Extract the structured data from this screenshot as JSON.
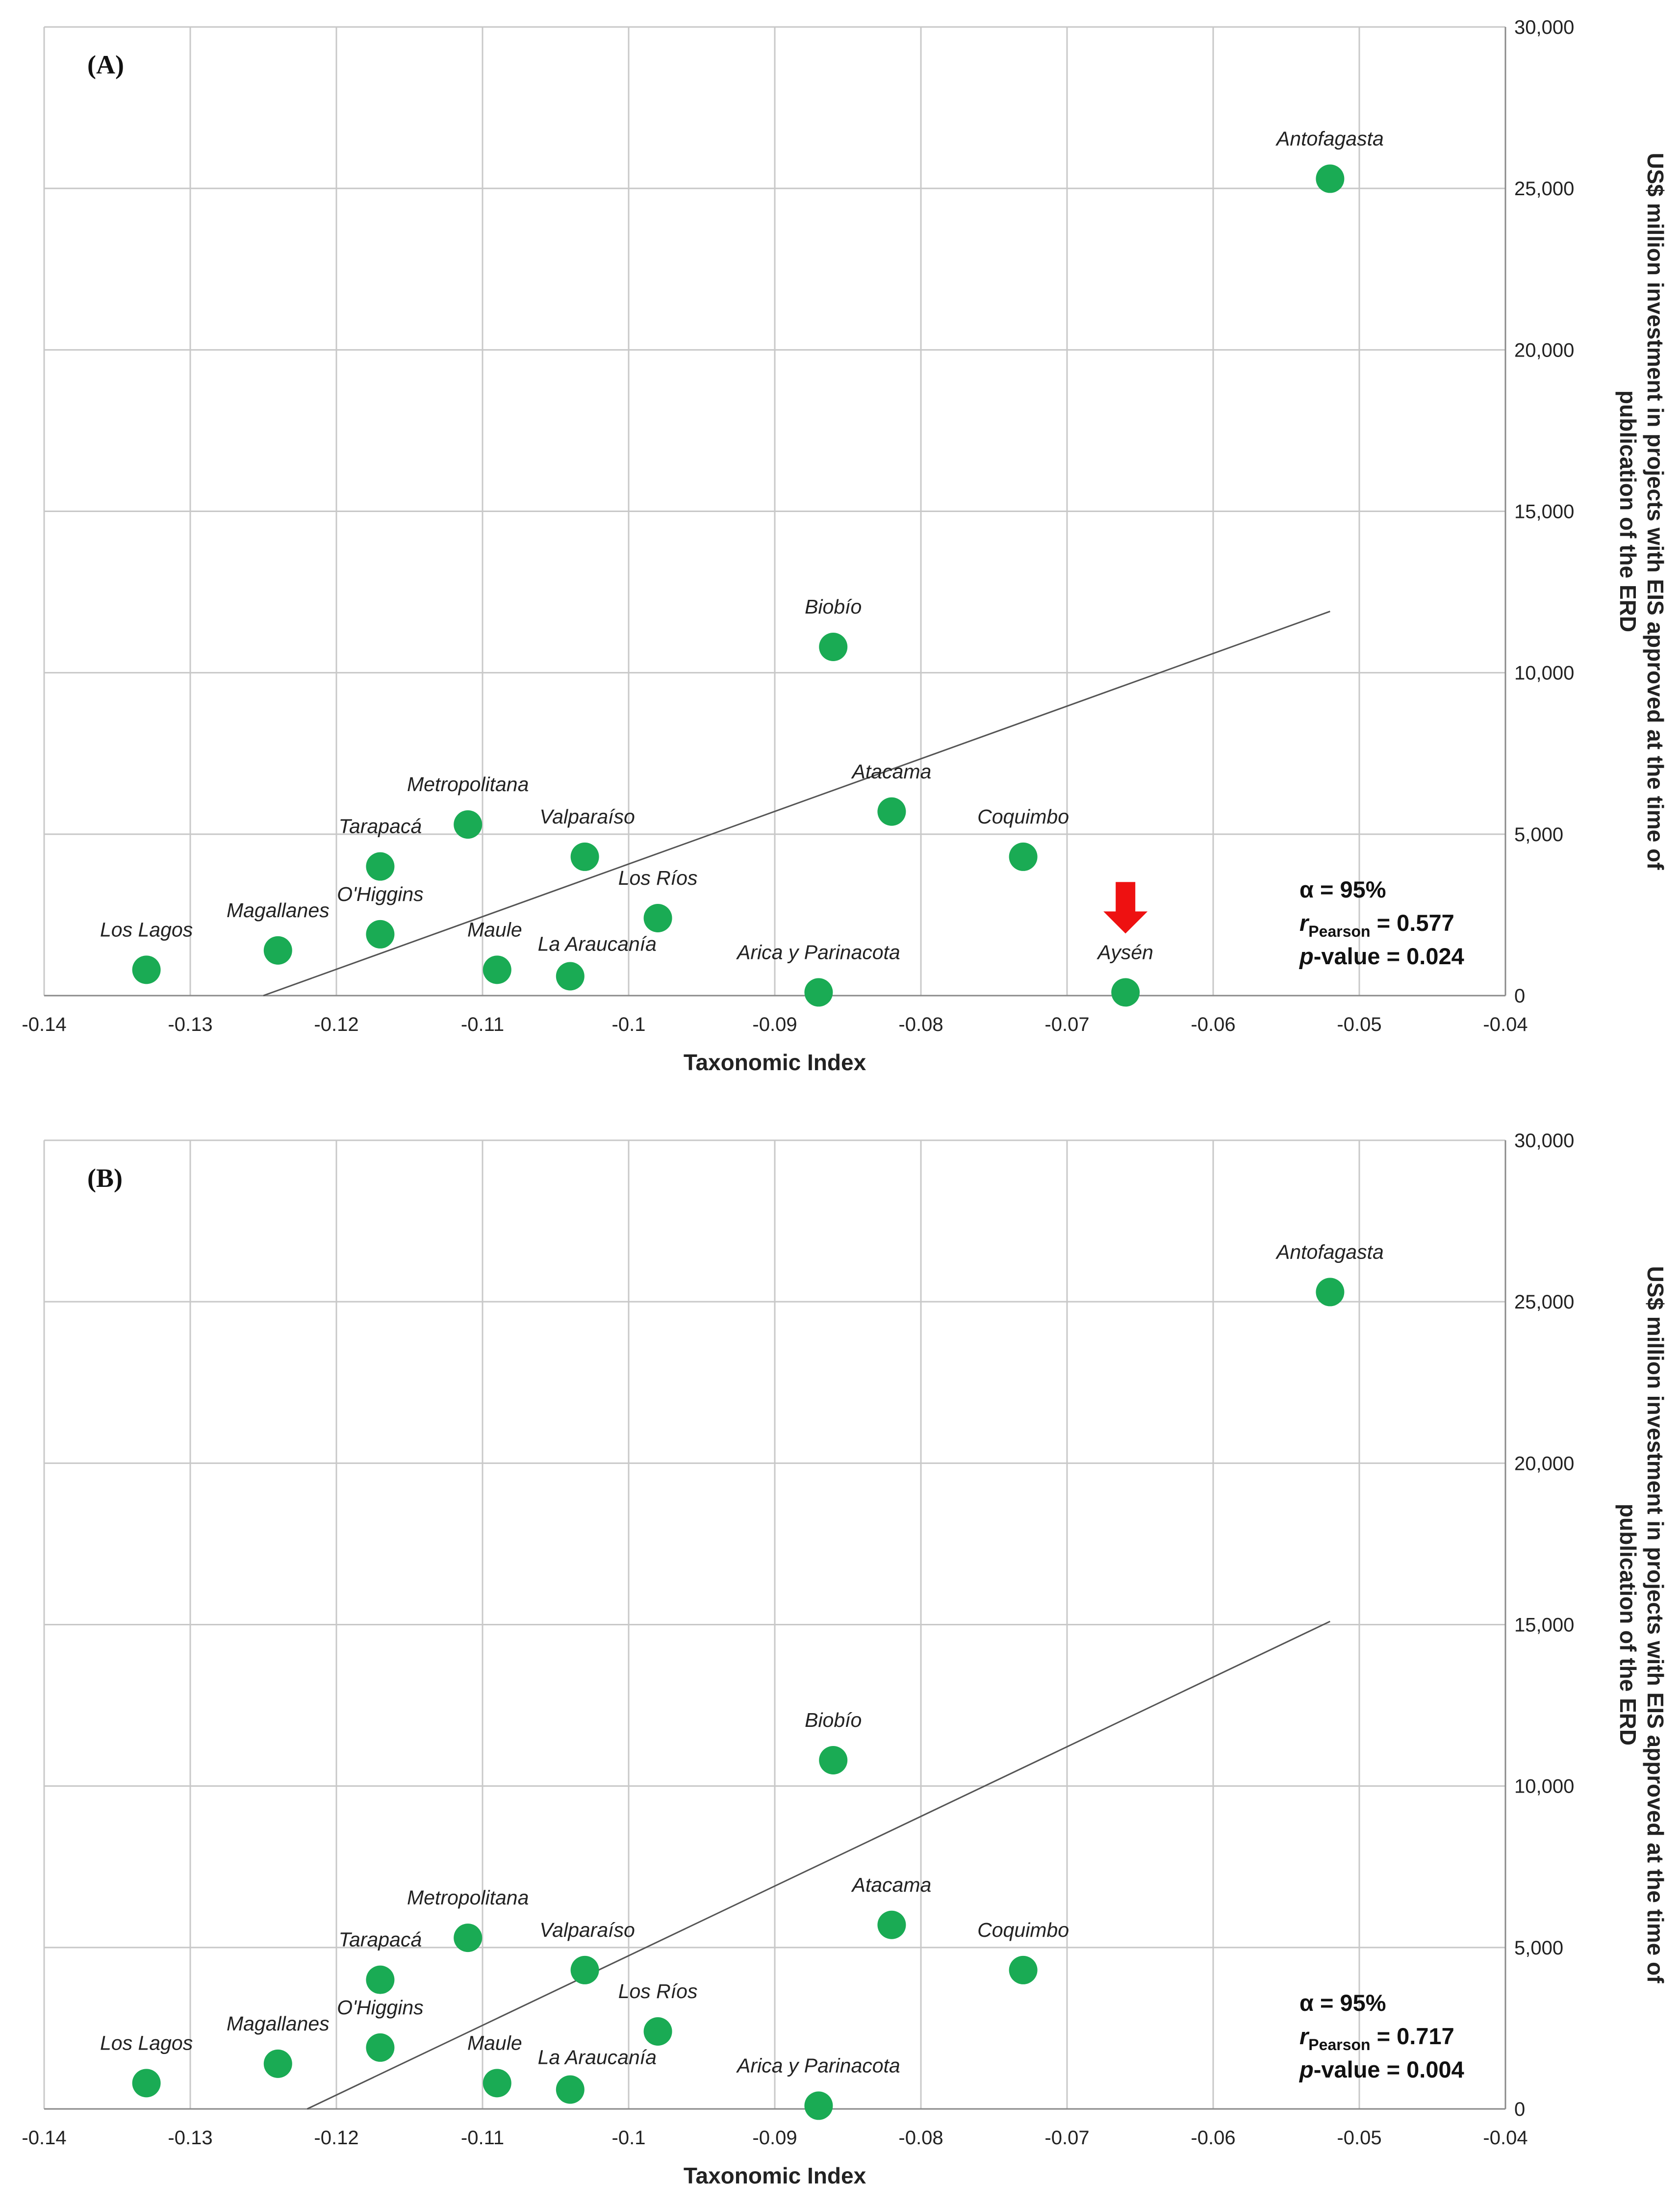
{
  "chart_data": [
    {
      "panel": "(A)",
      "type": "scatter",
      "xlabel": "Taxonomic Index",
      "ylabel": "US$ million investment in projects with EIS approved at the time of publication of the ERD",
      "xlim": [
        -0.14,
        -0.04
      ],
      "ylim": [
        0,
        30000
      ],
      "xticks": [
        "-0.14",
        "-0.13",
        "-0.12",
        "-0.11",
        "-0.1",
        "-0.09",
        "-0.08",
        "-0.07",
        "-0.06",
        "-0.05",
        "-0.04"
      ],
      "yticks": [
        "0",
        "5,000",
        "10,000",
        "15,000",
        "20,000",
        "25,000",
        "30,000"
      ],
      "grid": true,
      "marker_color": "#1aab54",
      "points": [
        {
          "label": "Antofagasta",
          "x": -0.052,
          "y": 25300
        },
        {
          "label": "Biobío",
          "x": -0.086,
          "y": 10800
        },
        {
          "label": "Atacama",
          "x": -0.082,
          "y": 5700
        },
        {
          "label": "Metropolitana",
          "x": -0.111,
          "y": 5300
        },
        {
          "label": "Valparaíso",
          "x": -0.103,
          "y": 4300
        },
        {
          "label": "Coquimbo",
          "x": -0.073,
          "y": 4300
        },
        {
          "label": "Tarapacá",
          "x": -0.117,
          "y": 4000
        },
        {
          "label": "Los Ríos",
          "x": -0.098,
          "y": 2400
        },
        {
          "label": "O'Higgins",
          "x": -0.117,
          "y": 1900
        },
        {
          "label": "Magallanes",
          "x": -0.124,
          "y": 1400
        },
        {
          "label": "Los Lagos",
          "x": -0.133,
          "y": 800
        },
        {
          "label": "Maule",
          "x": -0.109,
          "y": 800
        },
        {
          "label": "La Araucanía",
          "x": -0.104,
          "y": 600
        },
        {
          "label": "Arica y Parinacota",
          "x": -0.087,
          "y": 100
        },
        {
          "label": "Aysén",
          "x": -0.066,
          "y": 100
        }
      ],
      "trendline": {
        "x": [
          -0.125,
          -0.052
        ],
        "y": [
          0,
          11900
        ]
      },
      "annotation": {
        "type": "arrow",
        "color": "#ee1111",
        "points_to": "Aysén"
      },
      "stats": {
        "alpha": "α = 95%",
        "r_symbol": "r",
        "r_sub": "Pearson",
        "r_value": " = 0.577",
        "p_symbol": "p",
        "p_value": "-value = 0.024"
      }
    },
    {
      "panel": "(B)",
      "type": "scatter",
      "xlabel": "Taxonomic Index",
      "ylabel": "US$ million investment in projects with EIS approved at the time of publication of the ERD",
      "xlim": [
        -0.14,
        -0.04
      ],
      "ylim": [
        0,
        30000
      ],
      "xticks": [
        "-0.14",
        "-0.13",
        "-0.12",
        "-0.11",
        "-0.1",
        "-0.09",
        "-0.08",
        "-0.07",
        "-0.06",
        "-0.05",
        "-0.04"
      ],
      "yticks": [
        "0",
        "5,000",
        "10,000",
        "15,000",
        "20,000",
        "25,000",
        "30,000"
      ],
      "grid": true,
      "marker_color": "#1aab54",
      "points": [
        {
          "label": "Antofagasta",
          "x": -0.052,
          "y": 25300
        },
        {
          "label": "Biobío",
          "x": -0.086,
          "y": 10800
        },
        {
          "label": "Atacama",
          "x": -0.082,
          "y": 5700
        },
        {
          "label": "Metropolitana",
          "x": -0.111,
          "y": 5300
        },
        {
          "label": "Valparaíso",
          "x": -0.103,
          "y": 4300
        },
        {
          "label": "Coquimbo",
          "x": -0.073,
          "y": 4300
        },
        {
          "label": "Tarapacá",
          "x": -0.117,
          "y": 4000
        },
        {
          "label": "Los Ríos",
          "x": -0.098,
          "y": 2400
        },
        {
          "label": "O'Higgins",
          "x": -0.117,
          "y": 1900
        },
        {
          "label": "Magallanes",
          "x": -0.124,
          "y": 1400
        },
        {
          "label": "Los Lagos",
          "x": -0.133,
          "y": 800
        },
        {
          "label": "Maule",
          "x": -0.109,
          "y": 800
        },
        {
          "label": "La Araucanía",
          "x": -0.104,
          "y": 600
        },
        {
          "label": "Arica y Parinacota",
          "x": -0.087,
          "y": 100
        }
      ],
      "trendline": {
        "x": [
          -0.122,
          -0.052
        ],
        "y": [
          0,
          15100
        ]
      },
      "stats": {
        "alpha": "α = 95%",
        "r_symbol": "r",
        "r_sub": "Pearson",
        "r_value": " = 0.717",
        "p_symbol": "p",
        "p_value": "-value = 0.004"
      }
    }
  ]
}
